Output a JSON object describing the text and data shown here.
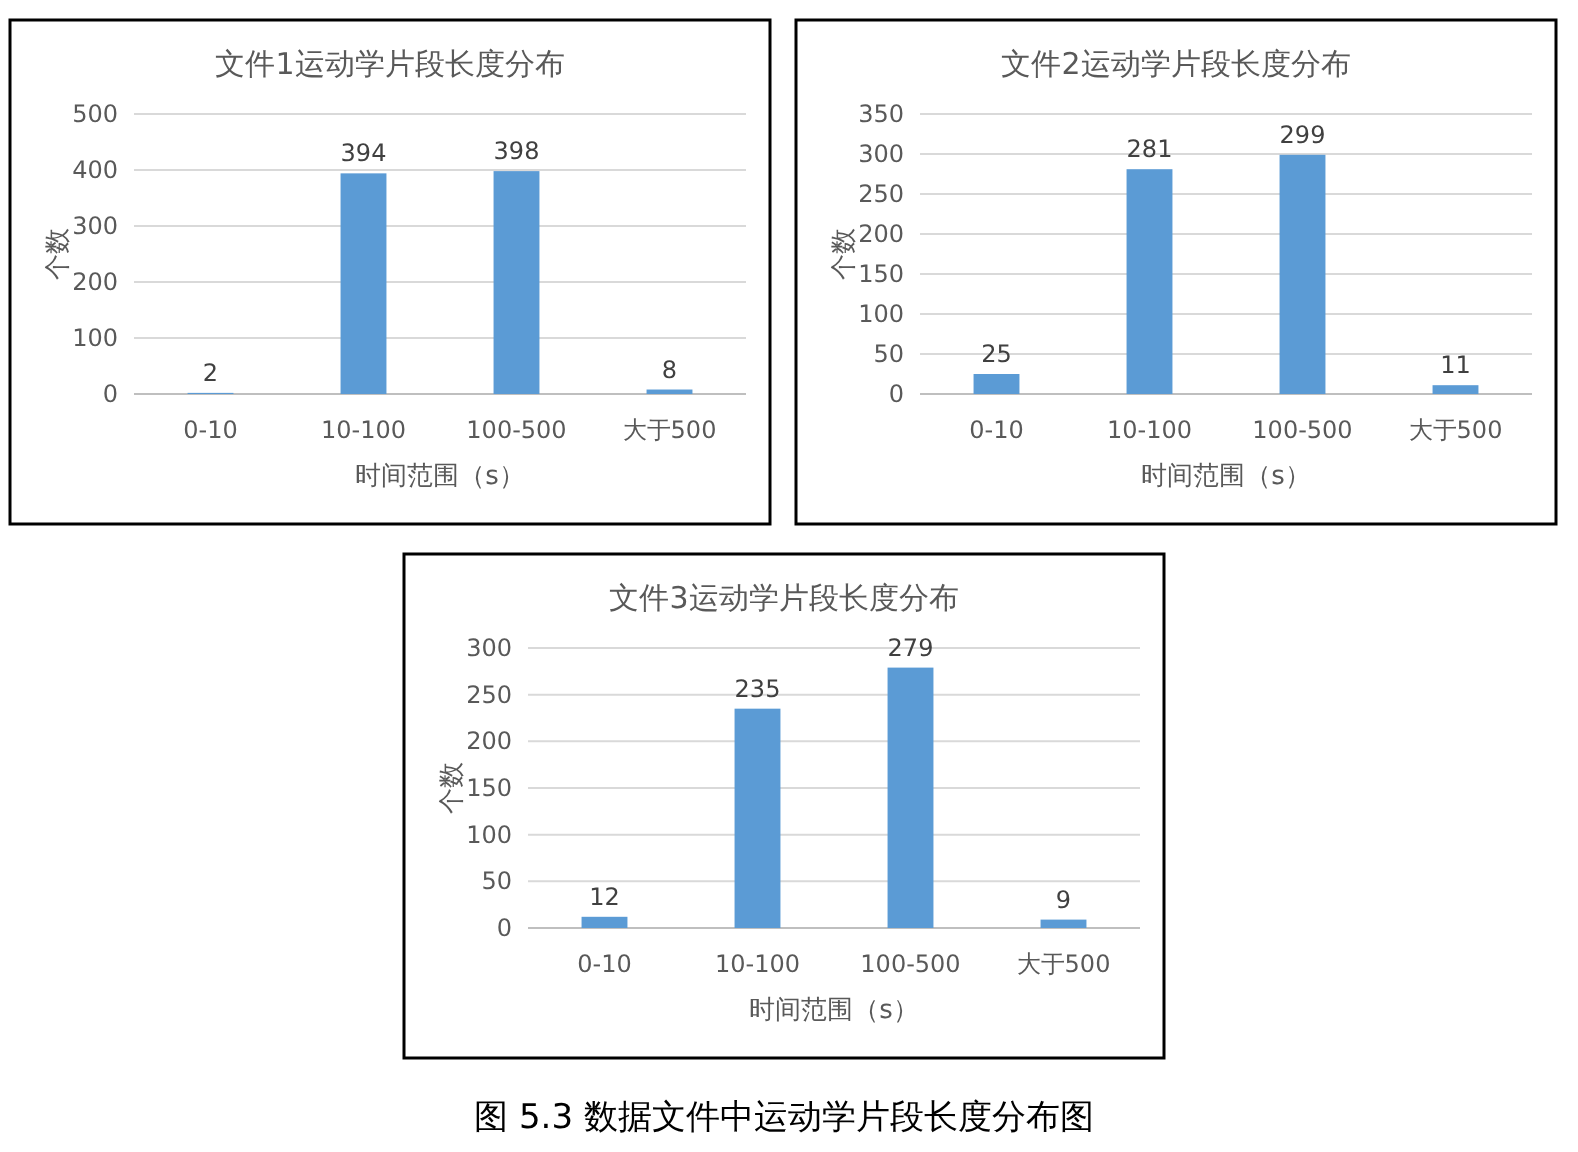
{
  "chart_data": [
    {
      "type": "bar",
      "title": "文件1运动学片段长度分布",
      "xlabel": "时间范围（s）",
      "ylabel": "个数",
      "categories": [
        "0-10",
        "10-100",
        "100-500",
        "大于500"
      ],
      "values": [
        2,
        394,
        398,
        8
      ],
      "color": "#5b9bd5",
      "ylim": [
        0,
        500
      ],
      "yticks": [
        0,
        100,
        200,
        300,
        400,
        500
      ],
      "grid": "y",
      "data_labels": true
    },
    {
      "type": "bar",
      "title": "文件2运动学片段长度分布",
      "xlabel": "时间范围（s）",
      "ylabel": "个数",
      "categories": [
        "0-10",
        "10-100",
        "100-500",
        "大于500"
      ],
      "values": [
        25,
        281,
        299,
        11
      ],
      "color": "#5b9bd5",
      "ylim": [
        0,
        350
      ],
      "yticks": [
        0,
        50,
        100,
        150,
        200,
        250,
        300,
        350
      ],
      "grid": "y",
      "data_labels": true
    },
    {
      "type": "bar",
      "title": "文件3运动学片段长度分布",
      "xlabel": "时间范围（s）",
      "ylabel": "个数",
      "categories": [
        "0-10",
        "10-100",
        "100-500",
        "大于500"
      ],
      "values": [
        12,
        235,
        279,
        9
      ],
      "color": "#5b9bd5",
      "ylim": [
        0,
        300
      ],
      "yticks": [
        0,
        50,
        100,
        150,
        200,
        250,
        300
      ],
      "grid": "y",
      "data_labels": true,
      "annotations": [
        "图 5.3  数据文件中运动学片段长度分布图"
      ]
    }
  ]
}
